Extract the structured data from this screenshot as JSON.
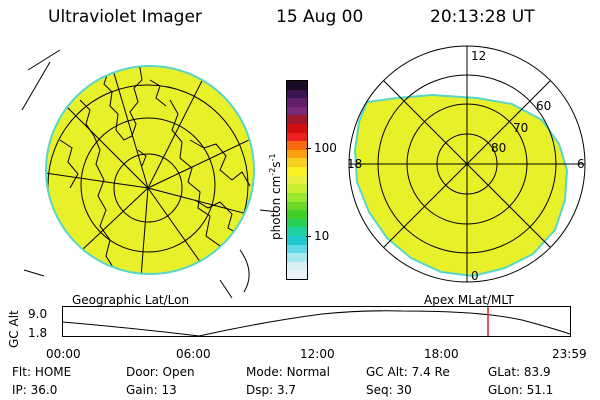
{
  "header": {
    "instrument": "Ultraviolet Imager",
    "date": "15 Aug 00",
    "time": "20:13:28 UT"
  },
  "colorbar": {
    "unit_label": "photon cm",
    "unit_sup1": "-2",
    "unit_mid": "s",
    "unit_sup2": "-1",
    "ticks": [
      "100",
      "10"
    ],
    "colors_top_to_bottom": [
      "#1a0a24",
      "#3a1550",
      "#60206a",
      "#7a2a78",
      "#a01830",
      "#d01010",
      "#f02020",
      "#f86a10",
      "#f8a010",
      "#f8d020",
      "#f8f020",
      "#e8f040",
      "#c8f030",
      "#9ae830",
      "#6ad828",
      "#40d028",
      "#28d058",
      "#20d0a0",
      "#20c8d0",
      "#60d8e8",
      "#a8e8f0",
      "#d8f0f4",
      "#e8f4f8"
    ]
  },
  "panels": {
    "left_label": "Geographic Lat/Lon",
    "right_label": "Apex MLat/MLT"
  },
  "polar_plot": {
    "mlt_labels": [
      "12",
      "18",
      "6",
      "0"
    ],
    "lat_labels": [
      "60",
      "70",
      "80"
    ]
  },
  "timeline": {
    "axis_label": "GC Alt",
    "y_ticks": [
      "9.0",
      "1.8"
    ],
    "x_ticks": [
      "00:00",
      "06:00",
      "12:00",
      "18:00",
      "23:59"
    ],
    "marker_color": "#e02020"
  },
  "status": {
    "row1": [
      {
        "label": "Flt:",
        "value": "HOME"
      },
      {
        "label": "Door:",
        "value": "Open"
      },
      {
        "label": "Mode:",
        "value": "Normal"
      },
      {
        "label": "GC Alt:",
        "value": "7.4 Re"
      },
      {
        "label": "GLat:",
        "value": "83.9"
      }
    ],
    "row2": [
      {
        "label": "IP:",
        "value": "36.0"
      },
      {
        "label": "Gain:",
        "value": "13"
      },
      {
        "label": "Dsp:",
        "value": "3.7"
      },
      {
        "label": "Seq:",
        "value": "30"
      },
      {
        "label": "GLon:",
        "value": "51.1"
      }
    ]
  },
  "colors": {
    "emission_fill": "#e8f02a",
    "emission_edge": "#58d6c8"
  }
}
